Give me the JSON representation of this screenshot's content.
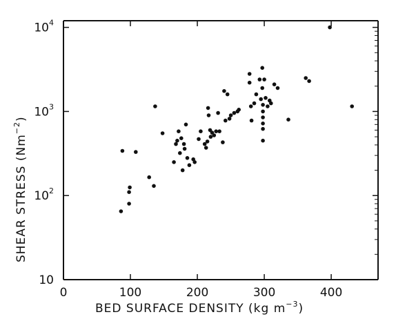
{
  "chart_data": {
    "type": "scatter",
    "title": "",
    "xlabel": "BED SURFACE DENSITY (kg m",
    "xlabel_sup": "−3",
    "xlabel_end": ")",
    "ylabel": "SHEAR STRESS (Nm",
    "ylabel_sup": "−2",
    "ylabel_end": ")",
    "xlim": [
      0,
      470
    ],
    "ylim": [
      10,
      12000
    ],
    "yscale": "log",
    "grid": false,
    "x_ticks": [
      {
        "value": 0,
        "label": "0"
      },
      {
        "value": 100,
        "label": "100"
      },
      {
        "value": 200,
        "label": "200"
      },
      {
        "value": 300,
        "label": "300"
      },
      {
        "value": 400,
        "label": "400"
      }
    ],
    "y_ticks": [
      {
        "value": 10,
        "label": "10",
        "sup": ""
      },
      {
        "value": 100,
        "label": "10",
        "sup": "2"
      },
      {
        "value": 1000,
        "label": "10",
        "sup": "3"
      },
      {
        "value": 10000,
        "label": "10",
        "sup": "4"
      }
    ],
    "points": [
      {
        "x": 86,
        "y": 65
      },
      {
        "x": 88,
        "y": 340
      },
      {
        "x": 98,
        "y": 80
      },
      {
        "x": 98,
        "y": 110
      },
      {
        "x": 99,
        "y": 125
      },
      {
        "x": 108,
        "y": 330
      },
      {
        "x": 128,
        "y": 165
      },
      {
        "x": 135,
        "y": 130
      },
      {
        "x": 137,
        "y": 1150
      },
      {
        "x": 148,
        "y": 550
      },
      {
        "x": 165,
        "y": 250
      },
      {
        "x": 168,
        "y": 410
      },
      {
        "x": 170,
        "y": 450
      },
      {
        "x": 172,
        "y": 580
      },
      {
        "x": 174,
        "y": 320
      },
      {
        "x": 176,
        "y": 480
      },
      {
        "x": 178,
        "y": 200
      },
      {
        "x": 180,
        "y": 410
      },
      {
        "x": 181,
        "y": 360
      },
      {
        "x": 183,
        "y": 700
      },
      {
        "x": 185,
        "y": 280
      },
      {
        "x": 188,
        "y": 230
      },
      {
        "x": 194,
        "y": 270
      },
      {
        "x": 196,
        "y": 250
      },
      {
        "x": 202,
        "y": 470
      },
      {
        "x": 205,
        "y": 580
      },
      {
        "x": 211,
        "y": 410
      },
      {
        "x": 213,
        "y": 370
      },
      {
        "x": 215,
        "y": 440
      },
      {
        "x": 216,
        "y": 1100
      },
      {
        "x": 217,
        "y": 900
      },
      {
        "x": 219,
        "y": 600
      },
      {
        "x": 220,
        "y": 500
      },
      {
        "x": 222,
        "y": 560
      },
      {
        "x": 225,
        "y": 520
      },
      {
        "x": 228,
        "y": 580
      },
      {
        "x": 231,
        "y": 960
      },
      {
        "x": 233,
        "y": 580
      },
      {
        "x": 238,
        "y": 430
      },
      {
        "x": 240,
        "y": 1750
      },
      {
        "x": 242,
        "y": 780
      },
      {
        "x": 245,
        "y": 1600
      },
      {
        "x": 248,
        "y": 820
      },
      {
        "x": 250,
        "y": 900
      },
      {
        "x": 255,
        "y": 960
      },
      {
        "x": 260,
        "y": 1000
      },
      {
        "x": 262,
        "y": 1050
      },
      {
        "x": 278,
        "y": 2800
      },
      {
        "x": 278,
        "y": 2200
      },
      {
        "x": 280,
        "y": 1150
      },
      {
        "x": 281,
        "y": 780
      },
      {
        "x": 285,
        "y": 1250
      },
      {
        "x": 288,
        "y": 1600
      },
      {
        "x": 293,
        "y": 2400
      },
      {
        "x": 295,
        "y": 1400
      },
      {
        "x": 297,
        "y": 3300
      },
      {
        "x": 297,
        "y": 1900
      },
      {
        "x": 298,
        "y": 1200
      },
      {
        "x": 298,
        "y": 1000
      },
      {
        "x": 298,
        "y": 850
      },
      {
        "x": 298,
        "y": 720
      },
      {
        "x": 298,
        "y": 620
      },
      {
        "x": 298,
        "y": 450
      },
      {
        "x": 300,
        "y": 2400
      },
      {
        "x": 302,
        "y": 1450
      },
      {
        "x": 305,
        "y": 1150
      },
      {
        "x": 308,
        "y": 1350
      },
      {
        "x": 310,
        "y": 1250
      },
      {
        "x": 315,
        "y": 2100
      },
      {
        "x": 320,
        "y": 1900
      },
      {
        "x": 336,
        "y": 800
      },
      {
        "x": 362,
        "y": 2500
      },
      {
        "x": 367,
        "y": 2300
      },
      {
        "x": 398,
        "y": 10000
      },
      {
        "x": 431,
        "y": 1150
      }
    ]
  }
}
